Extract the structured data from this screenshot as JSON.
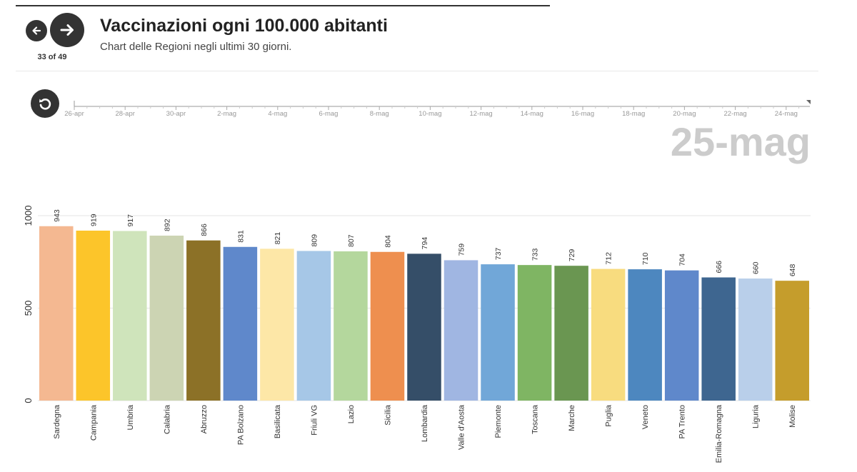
{
  "header": {
    "title": "Vaccinazioni ogni 100.000 abitanti",
    "subtitle": "Chart delle Regioni negli ultimi 30 giorni.",
    "counter": "33 of 49",
    "current_date": "25-mag"
  },
  "icons": {
    "prev": "arrow-left-icon",
    "next": "arrow-right-icon",
    "replay": "replay-icon"
  },
  "timeline": {
    "labels": [
      "26-apr",
      "28-apr",
      "30-apr",
      "2-mag",
      "4-mag",
      "6-mag",
      "8-mag",
      "10-mag",
      "12-mag",
      "14-mag",
      "16-mag",
      "18-mag",
      "20-mag",
      "22-mag",
      "24-mag"
    ]
  },
  "chart_data": {
    "type": "bar",
    "title": "Vaccinazioni ogni 100.000 abitanti",
    "subtitle": "Chart delle Regioni negli ultimi 30 giorni.",
    "ylim": [
      0,
      1000
    ],
    "yticks": [
      0,
      500,
      1000
    ],
    "grid": true,
    "categories": [
      "Sardegna",
      "Campania",
      "Umbria",
      "Calabria",
      "Abruzzo",
      "PA Bolzano",
      "Basilicata",
      "Friuli VG",
      "Lazio",
      "Sicilia",
      "Lombardia",
      "Valle d'Aosta",
      "Piemonte",
      "Toscana",
      "Marche",
      "Puglia",
      "Veneto",
      "PA Trento",
      "Emilia-Romagna",
      "Liguria",
      "Molise"
    ],
    "values": [
      943,
      919,
      917,
      892,
      866,
      831,
      821,
      809,
      807,
      804,
      794,
      759,
      737,
      733,
      729,
      712,
      710,
      704,
      666,
      660,
      648
    ],
    "colors": [
      "#f4b891",
      "#fcc52a",
      "#cfe4bb",
      "#ccd4b3",
      "#8c7127",
      "#5f88cb",
      "#fde7a7",
      "#a6c7e7",
      "#b4d79d",
      "#ee8f4f",
      "#354e68",
      "#a0b6e2",
      "#71a7d8",
      "#7fb563",
      "#6a9651",
      "#f8dc7f",
      "#4d87bf",
      "#5f88cb",
      "#3e6690",
      "#b9cfea",
      "#c59d2c"
    ]
  }
}
